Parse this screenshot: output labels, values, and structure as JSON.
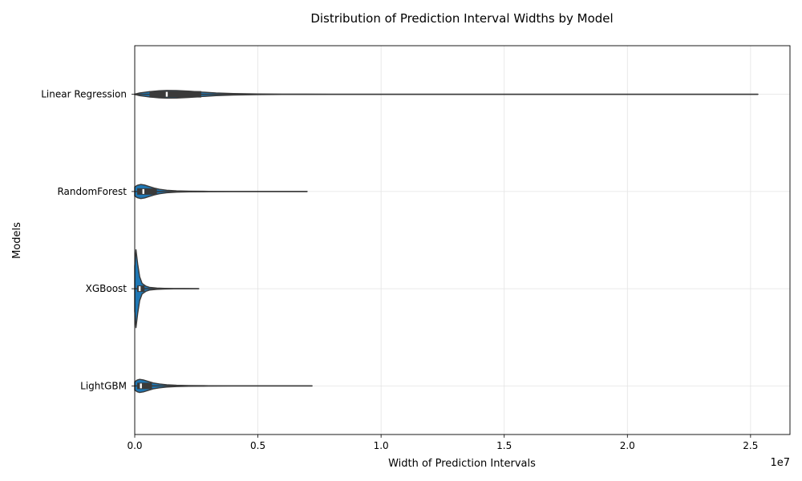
{
  "chart_data": {
    "type": "violin",
    "title": "Distribution of Prediction Interval Widths by Model",
    "xlabel": "Width of Prediction Intervals",
    "ylabel": "Models",
    "x_scale_label": "1e7",
    "xlim": [
      0,
      2.66
    ],
    "x_ticks": [
      0.0,
      0.5,
      1.0,
      1.5,
      2.0,
      2.5
    ],
    "x_tick_labels": [
      "0.0",
      "0.5",
      "1.0",
      "1.5",
      "2.0",
      "2.5"
    ],
    "categories": [
      "Linear Regression",
      "RandomForest",
      "XGBoost",
      "LightGBM"
    ],
    "grid": true,
    "color": "#1f77b4",
    "line_color": "#3a3a3a",
    "violins": [
      {
        "name": "Linear Regression",
        "min": 0.0,
        "q1": 0.06,
        "median": 0.13,
        "q3": 0.27,
        "max": 2.53,
        "density": [
          [
            0.0,
            0.02
          ],
          [
            0.02,
            0.18
          ],
          [
            0.06,
            0.36
          ],
          [
            0.1,
            0.48
          ],
          [
            0.13,
            0.52
          ],
          [
            0.17,
            0.5
          ],
          [
            0.22,
            0.42
          ],
          [
            0.27,
            0.3
          ],
          [
            0.33,
            0.18
          ],
          [
            0.4,
            0.1
          ],
          [
            0.5,
            0.05
          ],
          [
            0.6,
            0.025
          ],
          [
            0.8,
            0.012
          ],
          [
            1.0,
            0.006
          ],
          [
            1.5,
            0.004
          ],
          [
            2.0,
            0.003
          ],
          [
            2.53,
            0.003
          ]
        ]
      },
      {
        "name": "RandomForest",
        "min": 0.0,
        "q1": 0.01,
        "median": 0.035,
        "q3": 0.09,
        "max": 0.7,
        "density": [
          [
            0.0,
            0.6
          ],
          [
            0.01,
            0.82
          ],
          [
            0.025,
            0.94
          ],
          [
            0.04,
            0.86
          ],
          [
            0.06,
            0.65
          ],
          [
            0.08,
            0.45
          ],
          [
            0.1,
            0.3
          ],
          [
            0.13,
            0.17
          ],
          [
            0.17,
            0.09
          ],
          [
            0.22,
            0.045
          ],
          [
            0.3,
            0.022
          ],
          [
            0.4,
            0.012
          ],
          [
            0.55,
            0.006
          ],
          [
            0.7,
            0.004
          ]
        ]
      },
      {
        "name": "XGBoost",
        "min": 0.0,
        "q1": 0.01,
        "median": 0.02,
        "q3": 0.04,
        "max": 0.26,
        "density": [
          [
            0.0,
            3.0
          ],
          [
            0.005,
            5.2
          ],
          [
            0.012,
            3.3
          ],
          [
            0.02,
            1.6
          ],
          [
            0.03,
            0.7
          ],
          [
            0.045,
            0.35
          ],
          [
            0.06,
            0.18
          ],
          [
            0.09,
            0.09
          ],
          [
            0.12,
            0.05
          ],
          [
            0.16,
            0.025
          ],
          [
            0.2,
            0.015
          ],
          [
            0.26,
            0.01
          ]
        ]
      },
      {
        "name": "LightGBM",
        "min": 0.0,
        "q1": 0.01,
        "median": 0.025,
        "q3": 0.07,
        "max": 0.72,
        "density": [
          [
            0.0,
            0.55
          ],
          [
            0.01,
            0.78
          ],
          [
            0.02,
            0.88
          ],
          [
            0.035,
            0.8
          ],
          [
            0.055,
            0.6
          ],
          [
            0.075,
            0.4
          ],
          [
            0.1,
            0.26
          ],
          [
            0.13,
            0.15
          ],
          [
            0.17,
            0.085
          ],
          [
            0.22,
            0.045
          ],
          [
            0.3,
            0.022
          ],
          [
            0.4,
            0.012
          ],
          [
            0.55,
            0.006
          ],
          [
            0.72,
            0.004
          ]
        ]
      }
    ]
  }
}
